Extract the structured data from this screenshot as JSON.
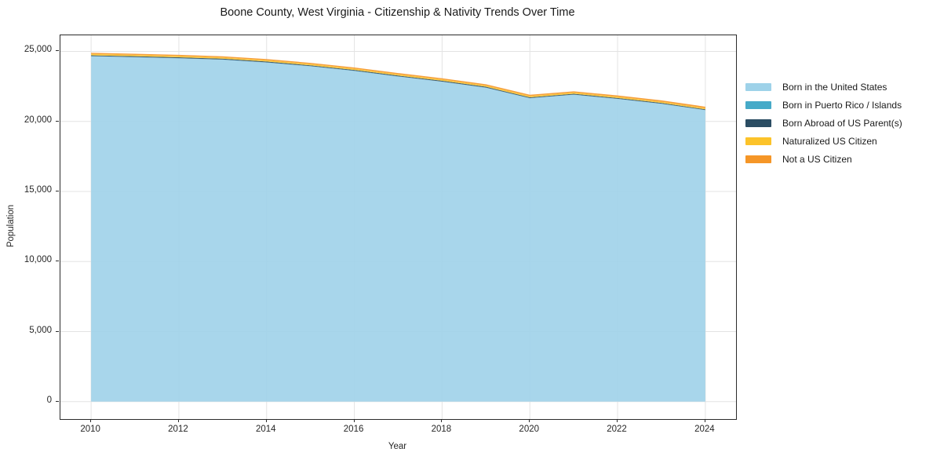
{
  "chart_data": {
    "type": "area",
    "stacked": true,
    "title": "Boone County, West Virginia - Citizenship & Nativity Trends Over Time",
    "xlabel": "Year",
    "ylabel": "Population",
    "x": [
      2010,
      2011,
      2012,
      2013,
      2014,
      2015,
      2016,
      2017,
      2018,
      2019,
      2020,
      2021,
      2022,
      2023,
      2024
    ],
    "series": [
      {
        "name": "Born in the United States",
        "color": "#9ED2E9",
        "values": [
          24650,
          24580,
          24500,
          24400,
          24200,
          23930,
          23600,
          23200,
          22830,
          22400,
          21650,
          21900,
          21600,
          21250,
          20800
        ]
      },
      {
        "name": "Born in Puerto Rico / Islands",
        "color": "#46AAC8",
        "values": [
          12,
          14,
          15,
          13,
          14,
          15,
          16,
          14,
          13,
          15,
          14,
          13,
          15,
          14,
          12
        ]
      },
      {
        "name": "Born Abroad of US Parent(s)",
        "color": "#2B4D63",
        "values": [
          55,
          58,
          60,
          62,
          60,
          58,
          57,
          60,
          62,
          58,
          55,
          60,
          58,
          56,
          54
        ]
      },
      {
        "name": "Naturalized US Citizen",
        "color": "#FCC32A",
        "values": [
          95,
          92,
          90,
          88,
          90,
          92,
          90,
          88,
          86,
          90,
          92,
          90,
          88,
          86,
          84
        ]
      },
      {
        "name": "Not a US Citizen",
        "color": "#F59627",
        "values": [
          88,
          86,
          85,
          87,
          86,
          85,
          87,
          88,
          89,
          87,
          89,
          87,
          89,
          94,
          100
        ]
      }
    ],
    "xticks": [
      2010,
      2012,
      2014,
      2016,
      2018,
      2020,
      2022,
      2024
    ],
    "yticks": [
      0,
      5000,
      10000,
      15000,
      20000,
      25000
    ],
    "grid": true,
    "legend_position": "right",
    "margin_fraction": 0.05
  }
}
